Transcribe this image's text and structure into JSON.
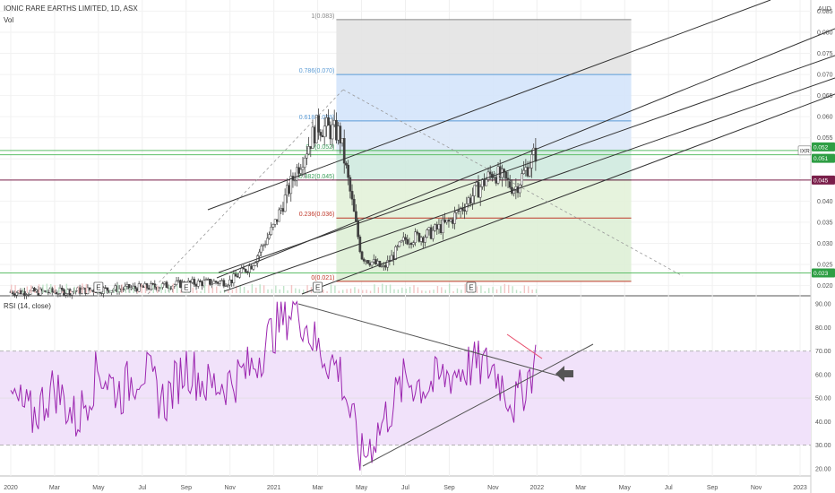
{
  "header": {
    "title": "IONIC RARE EARTHS LIMITED, 1D, ASX",
    "volume_label": "Vol",
    "currency": "AUD"
  },
  "rsi_panel": {
    "title": "RSI (14, close)"
  },
  "earnings_marker": "E",
  "colors": {
    "candle": "#404040",
    "fib_blue": "#5b9bd5",
    "fib_green": "#3a9e5a",
    "fib_red": "#c0392b",
    "rsi_line": "#9c27b0",
    "rsi_band": "#f1e2fa",
    "price_line": "#7a1f4a",
    "trend": "#333333",
    "green_level": "#2e9e44"
  },
  "chart_data": [
    {
      "type": "candlestick",
      "title": "IONIC RARE EARTHS LIMITED, 1D, ASX",
      "ylabel": "AUD",
      "ylim": [
        0.018,
        0.087
      ],
      "y_ticks": [
        "0.085",
        "0.080",
        "0.075",
        "0.070",
        "0.065",
        "0.060",
        "0.055",
        "0.050",
        "0.045",
        "0.040",
        "0.035",
        "0.030",
        "0.025",
        "0.020"
      ],
      "x_ticks": [
        "2020",
        "Mar",
        "May",
        "Jul",
        "Sep",
        "Nov",
        "2021",
        "Mar",
        "May",
        "Jul",
        "Sep",
        "Nov",
        "2022",
        "Mar",
        "May",
        "Jul",
        "Sep",
        "Nov",
        "2023"
      ],
      "series": [
        {
          "points": [
            [
              "2020-01",
              0.0185
            ],
            [
              "2020-03",
              0.0185
            ],
            [
              "2020-05",
              0.019
            ],
            [
              "2020-07",
              0.0195
            ],
            [
              "2020-09",
              0.0205
            ],
            [
              "2020-11",
              0.021
            ],
            [
              "2020-12",
              0.025
            ],
            [
              "2021-01",
              0.034
            ],
            [
              "2021-02",
              0.047
            ],
            [
              "2021-03",
              0.058
            ],
            [
              "2021-04",
              0.056
            ],
            [
              "2021-05",
              0.027
            ],
            [
              "2021-06",
              0.024
            ],
            [
              "2021-07",
              0.031
            ],
            [
              "2021-08",
              0.032
            ],
            [
              "2021-09",
              0.035
            ],
            [
              "2021-10",
              0.041
            ],
            [
              "2021-11",
              0.047
            ],
            [
              "2021-12",
              0.043
            ],
            [
              "2022-01",
              0.052
            ]
          ]
        }
      ],
      "fibonacci": [
        {
          "ratio": "1",
          "value": 0.083,
          "label": "1(0.083)"
        },
        {
          "ratio": "0.786",
          "value": 0.07,
          "label": "0.786(0.070)"
        },
        {
          "ratio": "0.618",
          "value": 0.059,
          "label": "0.618(0.059)"
        },
        {
          "ratio": "0.5",
          "value": 0.052,
          "label": "0.5(0.052)"
        },
        {
          "ratio": "0.382",
          "value": 0.045,
          "label": "0.382(0.045)"
        },
        {
          "ratio": "0.236",
          "value": 0.036,
          "label": "0.236(0.036)"
        },
        {
          "ratio": "0",
          "value": 0.021,
          "label": "0(0.021)"
        }
      ],
      "price_labels": [
        {
          "text": "IXR",
          "value": 0.052
        },
        {
          "text": "0.052",
          "value": 0.052
        },
        {
          "text": "0.051",
          "value": 0.051
        },
        {
          "text": "0.045",
          "value": 0.045
        },
        {
          "text": "0.023",
          "value": 0.023
        }
      ],
      "earnings_markers": [
        "2020-05",
        "2020-09",
        "2021-03",
        "2021-10"
      ]
    },
    {
      "type": "line",
      "title": "RSI (14, close)",
      "ylim": [
        18,
        92
      ],
      "y_ticks": [
        "90.00",
        "80.00",
        "70.00",
        "60.00",
        "50.00",
        "40.00",
        "30.00",
        "20.00"
      ],
      "band": [
        30,
        70
      ],
      "series": [
        {
          "points": [
            [
              "2020-01",
              50
            ],
            [
              "2020-02",
              42
            ],
            [
              "2020-03",
              55
            ],
            [
              "2020-04",
              40
            ],
            [
              "2020-05",
              62
            ],
            [
              "2020-06",
              52
            ],
            [
              "2020-07",
              63
            ],
            [
              "2020-08",
              48
            ],
            [
              "2020-09",
              64
            ],
            [
              "2020-10",
              55
            ],
            [
              "2020-11",
              57
            ],
            [
              "2020-12",
              63
            ],
            [
              "2021-01",
              79
            ],
            [
              "2021-02",
              90
            ],
            [
              "2021-03",
              71
            ],
            [
              "2021-04",
              62
            ],
            [
              "2021-05",
              24
            ],
            [
              "2021-06",
              40
            ],
            [
              "2021-07",
              58
            ],
            [
              "2021-08",
              55
            ],
            [
              "2021-09",
              60
            ],
            [
              "2021-10",
              64
            ],
            [
              "2021-11",
              63
            ],
            [
              "2021-12",
              47
            ],
            [
              "2022-01",
              67
            ]
          ]
        }
      ]
    }
  ]
}
